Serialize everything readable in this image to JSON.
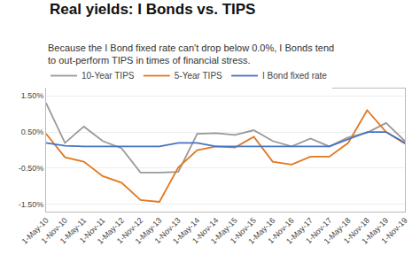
{
  "chart_data": {
    "type": "line",
    "title": "Real yields: I Bonds vs. TIPS",
    "subtitle": "Because the I Bond fixed rate can't drop below 0.0%, I Bonds tend\nto out-perform TIPS in times of financial stress.",
    "categories": [
      "1-May-10",
      "1-Nov-10",
      "1-May-11",
      "1-Nov-11",
      "1-May-12",
      "1-Nov-12",
      "1-May-13",
      "1-Nov-13",
      "1-May-14",
      "1-Nov-14",
      "1-May-15",
      "1-Nov-15",
      "1-May-16",
      "1-Nov-16",
      "1-May-17",
      "1-Nov-17",
      "1-May-18",
      "1-Nov-18",
      "1-May-19",
      "1-Nov-19"
    ],
    "series": [
      {
        "name": "10-Year TIPS",
        "color": "#999999",
        "values": [
          1.3,
          0.2,
          0.65,
          0.25,
          0.05,
          -0.62,
          -0.62,
          -0.6,
          0.45,
          0.47,
          0.42,
          0.55,
          0.25,
          0.1,
          0.32,
          0.1,
          0.35,
          0.48,
          0.75,
          0.25
        ]
      },
      {
        "name": "5-Year TIPS",
        "color": "#E07820",
        "values": [
          0.45,
          -0.2,
          -0.32,
          -0.72,
          -0.9,
          -1.38,
          -1.43,
          -0.48,
          0.0,
          0.1,
          0.07,
          0.37,
          -0.32,
          -0.4,
          -0.18,
          -0.18,
          0.2,
          1.1,
          0.5,
          0.18
        ]
      },
      {
        "name": "I Bond fixed rate",
        "color": "#4472C4",
        "values": [
          0.2,
          0.12,
          0.1,
          0.1,
          0.1,
          0.1,
          0.1,
          0.2,
          0.2,
          0.1,
          0.1,
          0.1,
          0.1,
          0.1,
          0.1,
          0.1,
          0.3,
          0.5,
          0.5,
          0.2
        ]
      }
    ],
    "ylim": [
      -1.7,
      1.7
    ],
    "yticks": [
      {
        "value": -1.5,
        "label": "-1.50%"
      },
      {
        "value": -0.5,
        "label": "-0.50%"
      },
      {
        "value": 0.5,
        "label": "0.50%"
      },
      {
        "value": 1.5,
        "label": "1.50%"
      }
    ],
    "grid": true,
    "legend": "top"
  }
}
